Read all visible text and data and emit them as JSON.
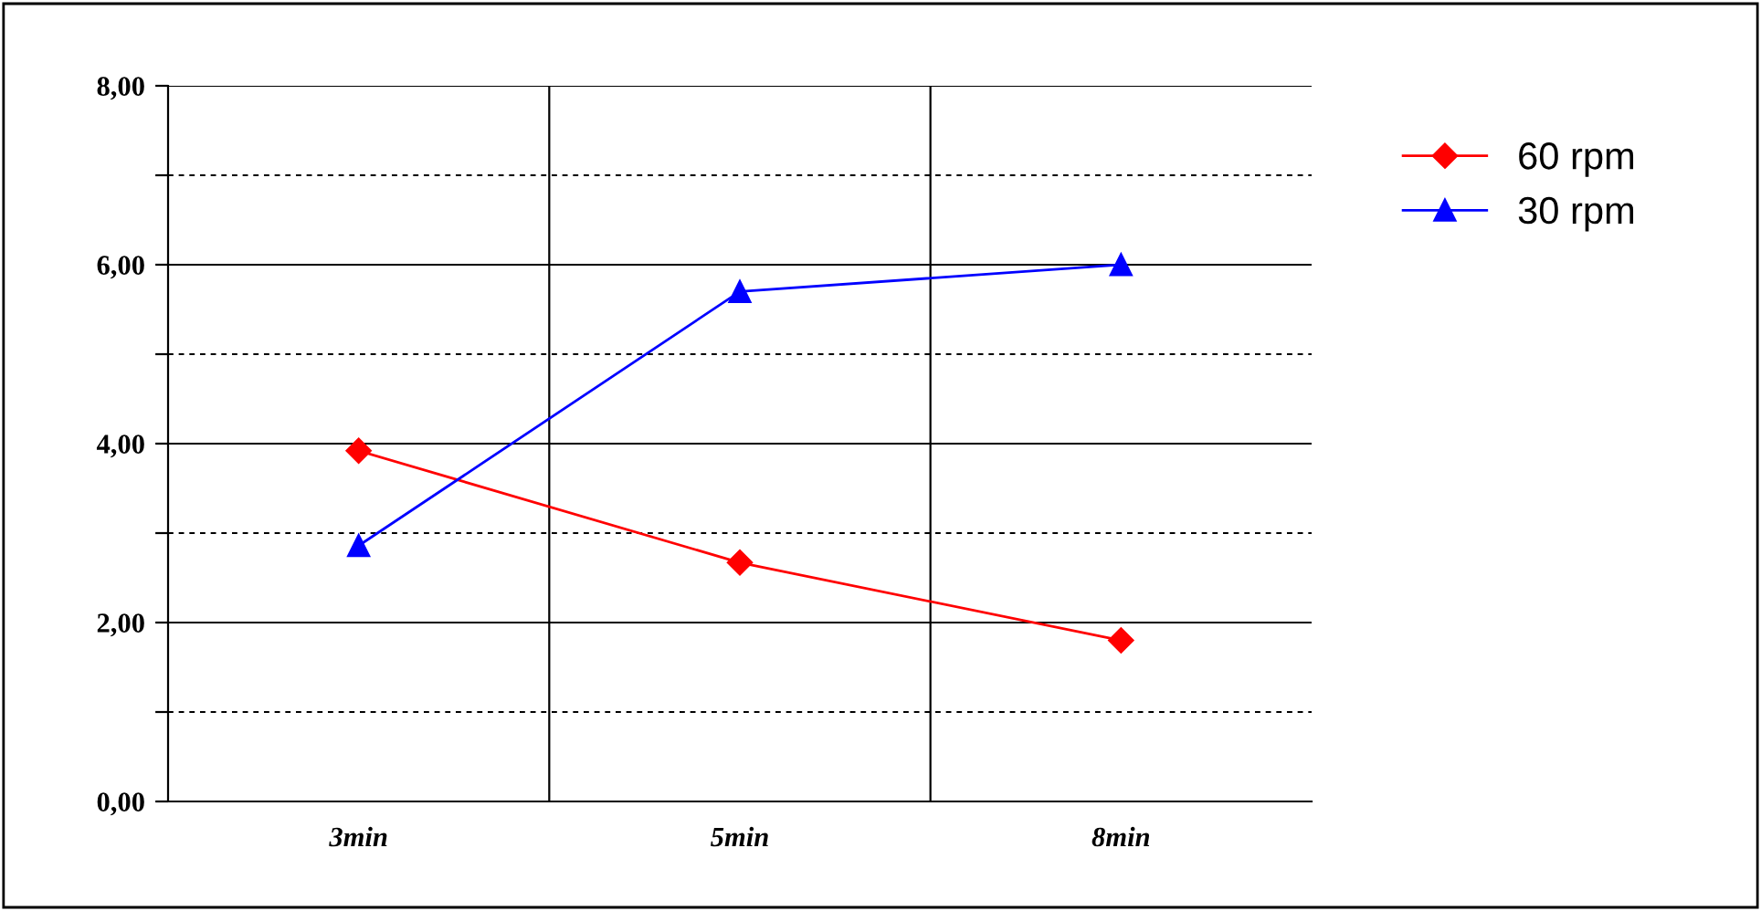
{
  "chart_data": {
    "type": "line",
    "categories": [
      "3min",
      "5min",
      "8min"
    ],
    "series": [
      {
        "name": "60 rpm",
        "color": "#ff0000",
        "values": [
          3.92,
          2.67,
          1.8
        ],
        "marker": "diamond"
      },
      {
        "name": "30 rpm",
        "color": "#0000ff",
        "values": [
          2.86,
          5.7,
          6.0
        ],
        "marker": "triangle"
      }
    ],
    "ylim": [
      0,
      8
    ],
    "yticks": [
      {
        "value": 0,
        "label": "0,00"
      },
      {
        "value": 1,
        "label": null
      },
      {
        "value": 2,
        "label": "2,00"
      },
      {
        "value": 3,
        "label": null
      },
      {
        "value": 4,
        "label": "4,00"
      },
      {
        "value": 5,
        "label": null
      },
      {
        "value": 6,
        "label": "6,00"
      },
      {
        "value": 7,
        "label": null
      },
      {
        "value": 8,
        "label": "8,00"
      }
    ],
    "grid": true,
    "legend": "right",
    "line_style": "solid"
  }
}
